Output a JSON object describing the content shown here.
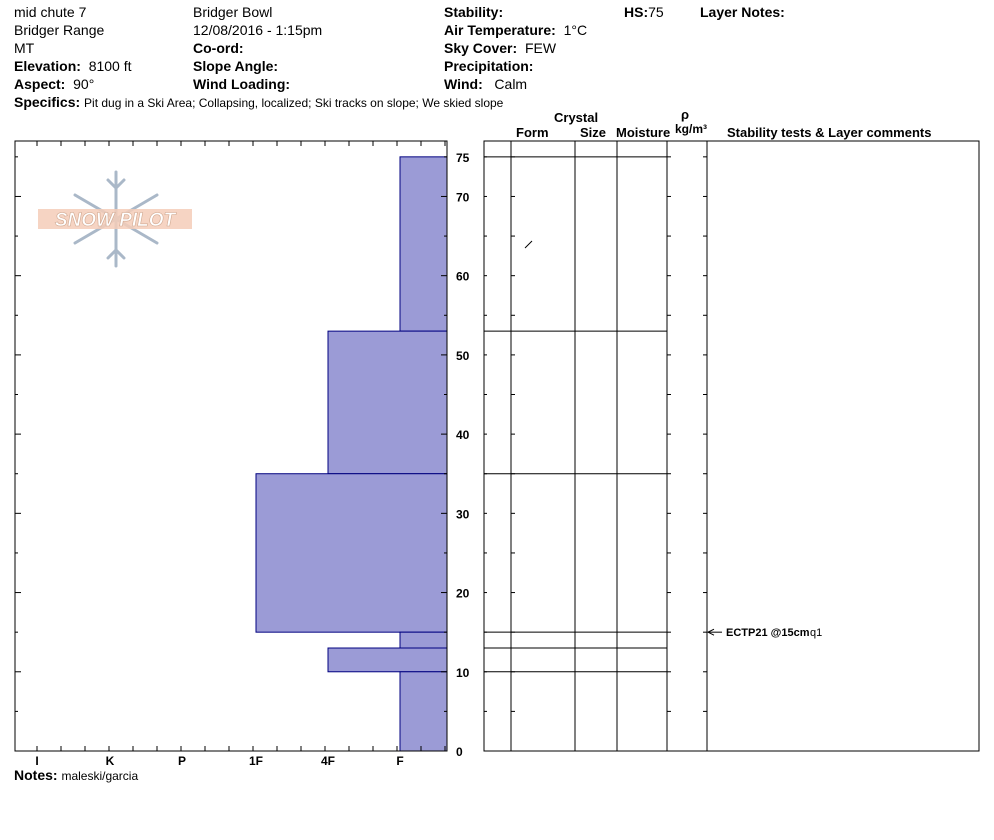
{
  "header": {
    "pit_name": "mid chute 7",
    "range": "Bridger Range",
    "state": "MT",
    "elevation_label": "Elevation:",
    "elevation_value": "8100 ft",
    "aspect_label": "Aspect:",
    "aspect_value": "90°",
    "location": "Bridger Bowl",
    "datetime": "12/08/2016 - 1:15pm",
    "coord_label": "Co-ord:",
    "slope_label": "Slope Angle:",
    "wind_loading_label": "Wind Loading:",
    "stability_label": "Stability:",
    "air_temp_label": "Air Temperature:",
    "air_temp_value": "1°C",
    "sky_label": "Sky Cover:",
    "sky_value": "FEW",
    "precip_label": "Precipitation:",
    "wind_label": "Wind:",
    "wind_value": "Calm",
    "hs_label": "HS:",
    "hs_value": "75",
    "layer_notes_label": "Layer Notes:",
    "specifics_label": "Specifics:",
    "specifics_value": "Pit dug in a Ski Area; Collapsing, localized; Ski tracks on slope; We skied slope"
  },
  "columns": {
    "crystal": "Crystal",
    "form": "Form",
    "size": "Size",
    "moisture": "Moisture",
    "rho": "ρ",
    "density_unit": "kg/m³",
    "stability": "Stability tests & Layer comments"
  },
  "logo_text": "SNOW PILOT",
  "notes_label": "Notes:",
  "notes_value": "maleski/garcia",
  "chart_data": {
    "type": "bar",
    "orientation": "horizontal",
    "xlabel": "",
    "ylabel": "",
    "hardness_scale": [
      "I",
      "K",
      "P",
      "1F",
      "4F",
      "F"
    ],
    "ylim": [
      0,
      77
    ],
    "yticks": [
      0,
      10,
      20,
      30,
      40,
      50,
      60,
      70,
      75
    ],
    "layers": [
      {
        "bottom": 53,
        "top": 75,
        "hardness": "F"
      },
      {
        "bottom": 35,
        "top": 53,
        "hardness": "4F"
      },
      {
        "bottom": 15,
        "top": 35,
        "hardness": "1F"
      },
      {
        "bottom": 13,
        "top": 15,
        "hardness": "F"
      },
      {
        "bottom": 10,
        "top": 13,
        "hardness": "4F"
      },
      {
        "bottom": 0,
        "top": 10,
        "hardness": "F"
      }
    ],
    "layer_boundaries": [
      75,
      53,
      35,
      15,
      13,
      10
    ],
    "bar_color": "#9b9bd6",
    "bar_edge_color": "#000080",
    "test": {
      "depth": 15,
      "label": "ECTP21 @15cm",
      "quality": "q1"
    }
  }
}
